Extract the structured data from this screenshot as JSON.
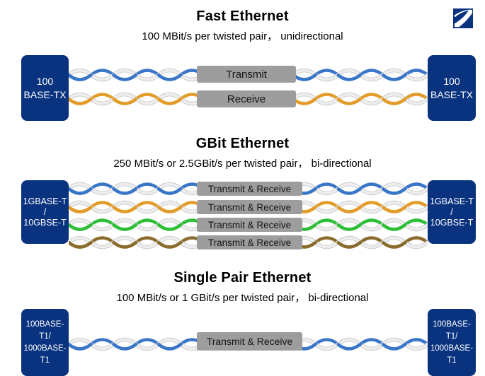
{
  "logo": {
    "name": "z-logo",
    "background_color": "#0a337f",
    "glyph_color": "#ffffff"
  },
  "colors": {
    "device_box": "#0a337f",
    "device_text": "#ffffff",
    "label_box": "#9d9d9d",
    "label_text": "#141414",
    "wire_white": "#ededed",
    "wire_white_edge": "#c7c7c7",
    "background": "#ffffff"
  },
  "sections": [
    {
      "id": "fast-ethernet",
      "title": "Fast Ethernet",
      "subtitle": "100 MBit/s per twisted pair， unidirectional",
      "left_device": [
        "100",
        "BASE-TX"
      ],
      "right_device": [
        "100",
        "BASE-TX"
      ],
      "pairs": [
        {
          "color": "#3a76c8",
          "color_name": "blue",
          "label": "Transmit"
        },
        {
          "color": "#e39c2a",
          "color_name": "orange",
          "label": "Receive"
        }
      ]
    },
    {
      "id": "gbit-ethernet",
      "title": "GBit Ethernet",
      "subtitle": "250 MBit/s or 2.5GBit/s per twisted pair， bi-directional",
      "left_device": [
        "1GBASE-T",
        "/",
        "10GBSE-T"
      ],
      "right_device": [
        "1GBASE-T",
        "/",
        "10GBSE-T"
      ],
      "pairs": [
        {
          "color": "#3a76c8",
          "color_name": "blue",
          "label": "Transmit & Receive"
        },
        {
          "color": "#e39c2a",
          "color_name": "orange",
          "label": "Transmit & Receive"
        },
        {
          "color": "#2fbe38",
          "color_name": "green",
          "label": "Transmit & Receive"
        },
        {
          "color": "#8a6c2c",
          "color_name": "brown",
          "label": "Transmit & Receive"
        }
      ]
    },
    {
      "id": "single-pair-ethernet",
      "title": "Single Pair Ethernet",
      "subtitle": "100 MBit/s or 1 GBit/s per twisted pair， bi-directional",
      "left_device": [
        "100BASE-T1/",
        "1000BASE-T1"
      ],
      "right_device": [
        "100BASE-T1/",
        "1000BASE-T1"
      ],
      "pairs": [
        {
          "color": "#3a76c8",
          "color_name": "blue",
          "label": "Transmit & Receive"
        }
      ]
    }
  ]
}
